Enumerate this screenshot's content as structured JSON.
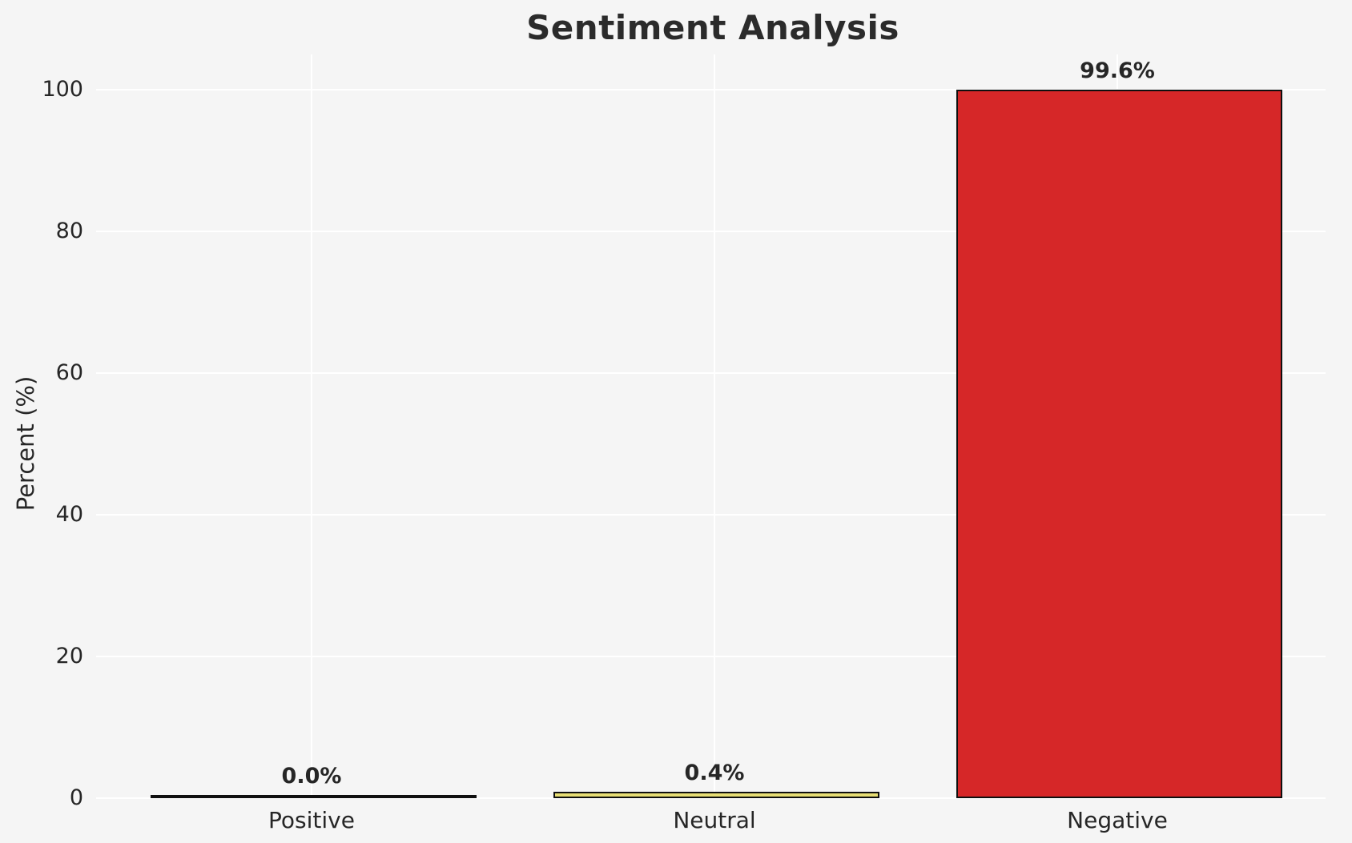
{
  "chart_data": {
    "type": "bar",
    "title": "Sentiment Analysis",
    "xlabel": "",
    "ylabel": "Percent (%)",
    "categories": [
      "Positive",
      "Neutral",
      "Negative"
    ],
    "values": [
      0.0,
      0.4,
      99.6
    ],
    "bar_labels": [
      "0.0%",
      "0.4%",
      "99.6%"
    ],
    "bar_colors": [
      null,
      "#e7de74",
      "#d62728"
    ],
    "bar_edge_color": "#0f0f0f",
    "yticks": [
      0,
      20,
      40,
      60,
      80,
      100
    ],
    "ylim": [
      0,
      105
    ],
    "grid": true,
    "grid_color": "#ffffff",
    "background_color": "#f5f5f5",
    "text_color": "#262626",
    "legend": null
  }
}
